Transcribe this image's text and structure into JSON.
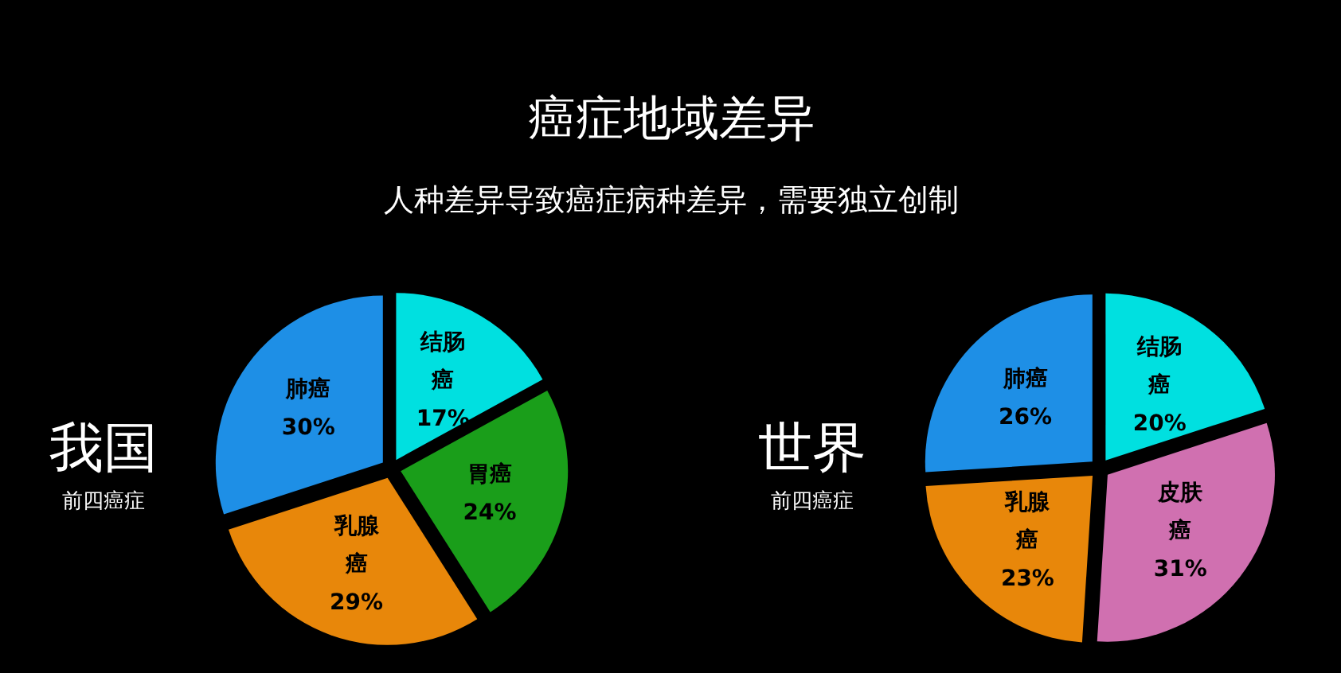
{
  "chart_data": [
    {
      "type": "other",
      "title": "癌症地域差异",
      "subtitle": "人种差异导致癌症病种差异，需要独立创制"
    },
    {
      "type": "pie",
      "title": "我国",
      "subtitle": "前四癌症",
      "categories": [
        "结肠癌",
        "胃癌",
        "乳腺癌",
        "肺癌"
      ],
      "values": [
        17,
        24,
        29,
        30
      ],
      "value_labels": [
        "17%",
        "24%",
        "29%",
        "30%"
      ],
      "colors": [
        "#00e0e0",
        "#1a9e1a",
        "#e8870a",
        "#1e8fe6"
      ]
    },
    {
      "type": "pie",
      "title": "世界",
      "subtitle": "前四癌症",
      "categories": [
        "结肠癌",
        "皮肤癌",
        "乳腺癌",
        "肺癌"
      ],
      "values": [
        20,
        31,
        23,
        26
      ],
      "value_labels": [
        "20%",
        "31%",
        "23%",
        "26%"
      ],
      "colors": [
        "#00e0e0",
        "#d070b0",
        "#e8870a",
        "#1e8fe6"
      ]
    }
  ]
}
